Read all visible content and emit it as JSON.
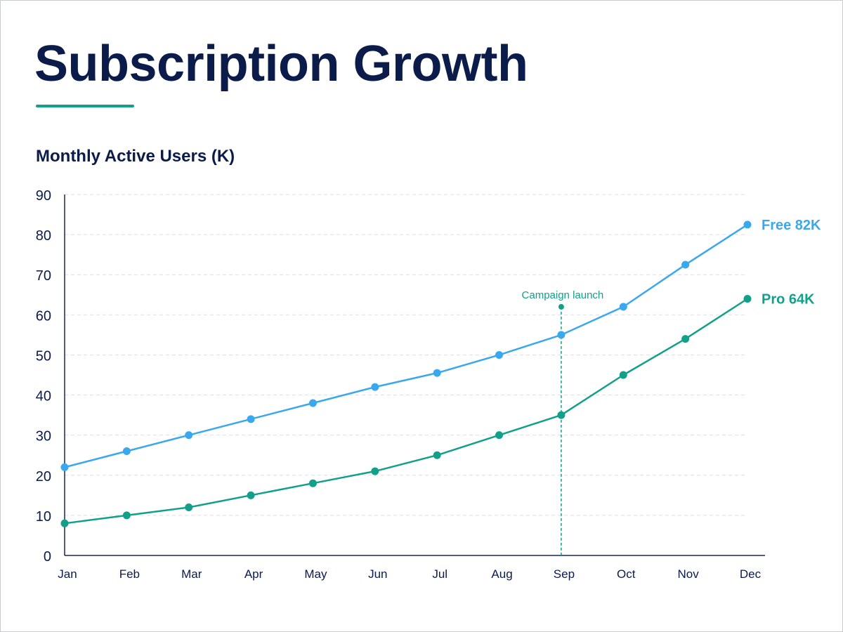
{
  "page": {
    "title": "Subscription Growth"
  },
  "colors": {
    "title": "#0b1b4a",
    "accent": "#12a08a",
    "free": "#3aa8ee",
    "pro": "#12a08a",
    "grid": "#dcdfe4",
    "axis": "#1c2550"
  },
  "chart_data": {
    "type": "line",
    "title": "Monthly Active Users (K)",
    "xlabel": "",
    "ylabel": "",
    "categories": [
      "Jan",
      "Feb",
      "Mar",
      "Apr",
      "May",
      "Jun",
      "Jul",
      "Aug",
      "Sep",
      "Oct",
      "Nov",
      "Dec"
    ],
    "ylim": [
      0,
      90
    ],
    "yticks": [
      0,
      10,
      20,
      30,
      40,
      50,
      60,
      70,
      80,
      90
    ],
    "grid": true,
    "series": [
      {
        "name": "Free",
        "color": "#3aa8ee",
        "values": [
          22,
          26,
          30,
          34,
          38,
          42,
          45.5,
          50,
          55,
          62,
          72.5,
          82.5
        ],
        "end_label": "Free 82K"
      },
      {
        "name": "Pro",
        "color": "#12a08a",
        "values": [
          8,
          10,
          12,
          15,
          18,
          21,
          25,
          30,
          35,
          45,
          54,
          64
        ],
        "end_label": "Pro 64K"
      }
    ],
    "annotations": [
      {
        "text": "Campaign launch",
        "x": "Sep",
        "y": 62,
        "color": "#12a08a"
      }
    ]
  }
}
